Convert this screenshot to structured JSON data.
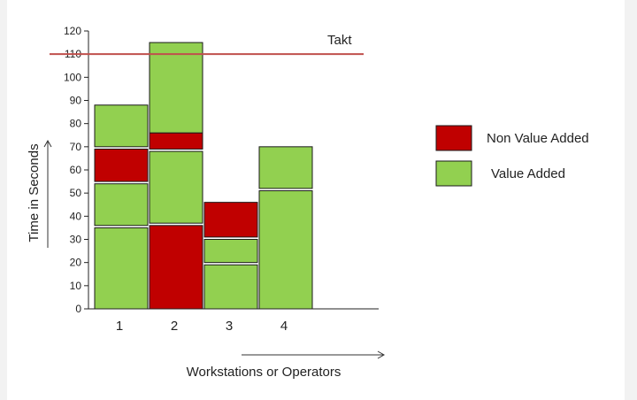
{
  "chart_data": {
    "type": "bar",
    "stacked": true,
    "xlabel": "Workstations or Operators",
    "ylabel": "Time in Seconds",
    "ylim": [
      0,
      120
    ],
    "yticks": [
      0,
      10,
      20,
      30,
      40,
      50,
      60,
      70,
      80,
      90,
      100,
      110,
      120
    ],
    "categories": [
      "1",
      "2",
      "3",
      "4"
    ],
    "stacks": [
      {
        "category": "1",
        "segments": [
          {
            "type": "Value Added",
            "from": 0,
            "to": 35
          },
          {
            "type": "Value Added",
            "from": 36,
            "to": 54
          },
          {
            "type": "Non Value Added",
            "from": 55,
            "to": 69
          },
          {
            "type": "Value Added",
            "from": 70,
            "to": 88
          }
        ]
      },
      {
        "category": "2",
        "segments": [
          {
            "type": "Non Value Added",
            "from": 0,
            "to": 36
          },
          {
            "type": "Value Added",
            "from": 37,
            "to": 68
          },
          {
            "type": "Non Value Added",
            "from": 69,
            "to": 76
          },
          {
            "type": "Value Added",
            "from": 76,
            "to": 115
          }
        ]
      },
      {
        "category": "3",
        "segments": [
          {
            "type": "Value Added",
            "from": 0,
            "to": 19
          },
          {
            "type": "Value Added",
            "from": 20,
            "to": 30
          },
          {
            "type": "Non Value Added",
            "from": 31,
            "to": 46
          }
        ]
      },
      {
        "category": "4",
        "segments": [
          {
            "type": "Value Added",
            "from": 0,
            "to": 51
          },
          {
            "type": "Value Added",
            "from": 52,
            "to": 70
          }
        ]
      }
    ],
    "reference_line": {
      "label": "Takt",
      "value": 110,
      "color": "#c0504d"
    },
    "legend": [
      {
        "name": "Non Value Added",
        "color": "#c00000"
      },
      {
        "name": "Value Added",
        "color": "#92d050"
      }
    ],
    "legend_position": "right",
    "grid": false
  }
}
